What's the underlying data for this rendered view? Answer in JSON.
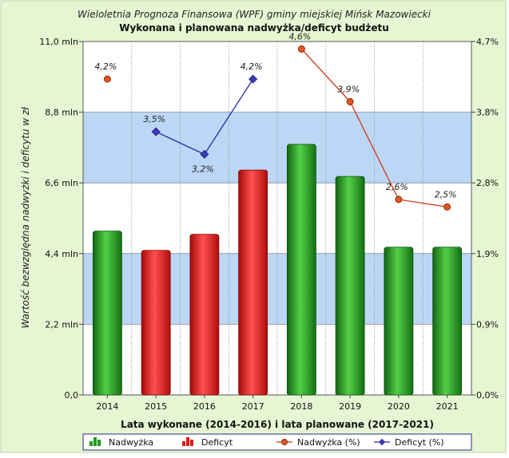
{
  "chart_data": {
    "type": "bar",
    "title": "Wieloletnia Prognoza Finansowa (WPF) gminy miejskiej Mińsk Mazowiecki",
    "subtitle": "Wykonana i planowana nadwyżka/deficyt budżetu",
    "xlabel": "Lata wykonane (2014-2016) i lata planowane (2017-2021)",
    "ylabel": "Wartość bezwzględna nadwyżki i deficytu w zł",
    "categories": [
      "2014",
      "2015",
      "2016",
      "2017",
      "2018",
      "2019",
      "2020",
      "2021"
    ],
    "left_axis": {
      "ylim": [
        0,
        11.0
      ],
      "ticks": [
        0,
        2.2,
        4.4,
        6.6,
        8.8,
        11.0
      ],
      "tick_labels": [
        "0,0",
        "2,2 mln",
        "4,4 mln",
        "6,6 mln",
        "8,8 mln",
        "11,0 mln"
      ]
    },
    "right_axis": {
      "ylim": [
        0,
        4.7
      ],
      "ticks": [
        0,
        0.94,
        1.88,
        2.82,
        3.76,
        4.7
      ],
      "tick_labels": [
        "0,0%",
        "0,9%",
        "1,9%",
        "2,8%",
        "3,8%",
        "4,7%"
      ]
    },
    "bars": [
      {
        "category": "2014",
        "value": 5.1,
        "type": "surplus"
      },
      {
        "category": "2015",
        "value": 4.5,
        "type": "deficit"
      },
      {
        "category": "2016",
        "value": 5.0,
        "type": "deficit"
      },
      {
        "category": "2017",
        "value": 7.0,
        "type": "deficit"
      },
      {
        "category": "2018",
        "value": 7.8,
        "type": "surplus"
      },
      {
        "category": "2019",
        "value": 6.8,
        "type": "surplus"
      },
      {
        "category": "2020",
        "value": 4.6,
        "type": "surplus"
      },
      {
        "category": "2021",
        "value": 4.6,
        "type": "surplus"
      }
    ],
    "series": [
      {
        "name": "Nadwyżka (%)",
        "color": "#d03a1a",
        "points": [
          {
            "category": "2014",
            "value": 4.2,
            "label": "4,2%"
          },
          {
            "category": "2018",
            "value": 4.6,
            "label": "4,6%"
          },
          {
            "category": "2019",
            "value": 3.9,
            "label": "3,9%"
          },
          {
            "category": "2020",
            "value": 2.6,
            "label": "2,6%"
          },
          {
            "category": "2021",
            "value": 2.5,
            "label": "2,5%"
          }
        ],
        "connected": [
          [
            "2018",
            "2019",
            "2020",
            "2021"
          ]
        ]
      },
      {
        "name": "Deficyt (%)",
        "color": "#2a2aa8",
        "points": [
          {
            "category": "2015",
            "value": 3.5,
            "label": "3,5%"
          },
          {
            "category": "2016",
            "value": 3.2,
            "label": "3,2%"
          },
          {
            "category": "2017",
            "value": 4.2,
            "label": "4,2%"
          }
        ],
        "connected": [
          [
            "2015",
            "2016",
            "2017"
          ]
        ]
      }
    ],
    "legend": {
      "placement": "bottom",
      "entries": [
        {
          "name": "Nadwyżka",
          "kind": "bar",
          "color": "#1e9a1e"
        },
        {
          "name": "Deficyt",
          "kind": "bar",
          "color": "#e41818"
        },
        {
          "name": "Nadwyżka (%)",
          "kind": "line",
          "color": "#d03a1a"
        },
        {
          "name": "Deficyt (%)",
          "kind": "line",
          "color": "#2a2aa8"
        }
      ]
    },
    "colors": {
      "surplus": "#1e9a1e",
      "deficit": "#e41818",
      "band": "#bcd7f5",
      "frame_bg": "#e6f6d2"
    },
    "grid": {
      "horizontal_bands": true,
      "vertical_dotted": true
    }
  }
}
